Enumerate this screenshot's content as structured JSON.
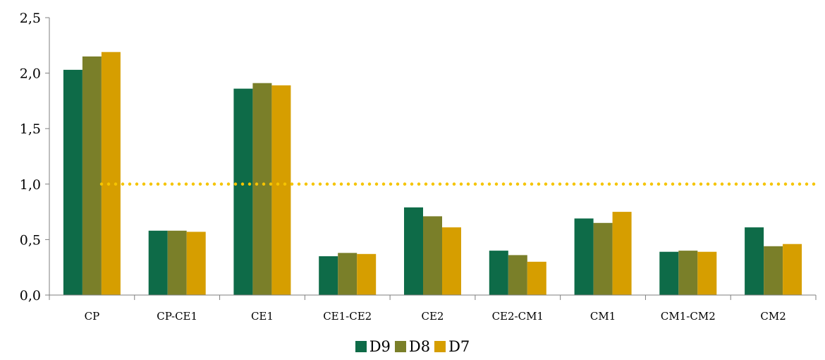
{
  "chart_data": {
    "type": "bar",
    "categories": [
      "CP",
      "CP-CE1",
      "CE1",
      "CE1-CE2",
      "CE2",
      "CE2-CM1",
      "CM1",
      "CM1-CM2",
      "CM2"
    ],
    "series": [
      {
        "name": "D9",
        "color": "#0e6b48",
        "values": [
          2.03,
          0.58,
          1.86,
          0.35,
          0.79,
          0.4,
          0.69,
          0.39,
          0.61
        ]
      },
      {
        "name": "D8",
        "color": "#7a7f29",
        "values": [
          2.15,
          0.58,
          1.91,
          0.38,
          0.71,
          0.36,
          0.65,
          0.4,
          0.44
        ]
      },
      {
        "name": "D7",
        "color": "#d69e00",
        "values": [
          2.19,
          0.57,
          1.89,
          0.37,
          0.61,
          0.3,
          0.75,
          0.39,
          0.46
        ]
      }
    ],
    "yticks": [
      "0,0",
      "0,5",
      "1,0",
      "1,5",
      "2,0",
      "2,5"
    ],
    "ylim": [
      0,
      2.5
    ],
    "reference_line": {
      "value": 1.0,
      "style": "dotted",
      "color": "#f5c400"
    },
    "title": "",
    "xlabel": "",
    "ylabel": "",
    "grid": false,
    "legend_position": "bottom-center"
  }
}
